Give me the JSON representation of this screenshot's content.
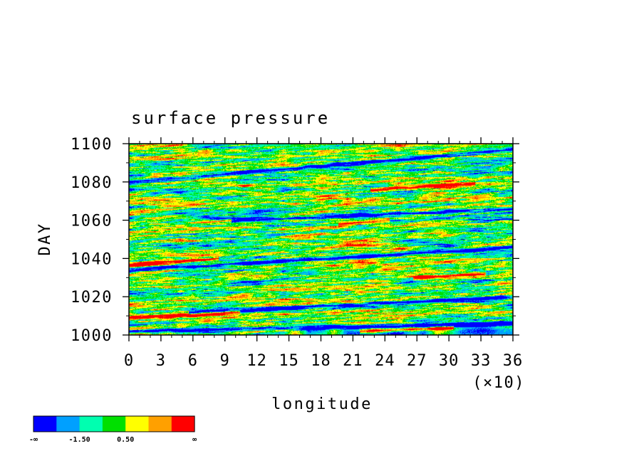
{
  "chart_data": {
    "type": "heatmap",
    "title": "surface pressure",
    "xlabel": "longitude",
    "ylabel": "DAY",
    "x_scale_note": "(×10)",
    "xlim": [
      0,
      36
    ],
    "ylim": [
      1000,
      1100
    ],
    "x_ticks": [
      0,
      3,
      6,
      9,
      12,
      15,
      18,
      21,
      24,
      27,
      30,
      33,
      36
    ],
    "y_ticks": [
      1000,
      1020,
      1040,
      1060,
      1080,
      1100
    ],
    "x_tick_labels": [
      "0",
      "3",
      "6",
      "9",
      "12",
      "15",
      "18",
      "21",
      "24",
      "27",
      "30",
      "33",
      "36"
    ],
    "y_tick_labels": [
      "1000",
      "1020",
      "1040",
      "1060",
      "1080",
      "1100"
    ],
    "color_levels": [
      "#0000ff",
      "#00a0ff",
      "#00ffb0",
      "#00e000",
      "#ffff00",
      "#ffa000",
      "#ff0000"
    ],
    "colorbar_labels": [
      "-∞",
      "-1.50",
      "0.50",
      "∞"
    ],
    "features": [
      {
        "kind": "low",
        "x0": 0,
        "day0": 1002,
        "x1": 36,
        "day1": 1006
      },
      {
        "kind": "low",
        "x0": 6,
        "day0": 1012,
        "x1": 36,
        "day1": 1020
      },
      {
        "kind": "low",
        "x0": 0,
        "day0": 1034,
        "x1": 36,
        "day1": 1046
      },
      {
        "kind": "low",
        "x0": 10,
        "day0": 1060,
        "x1": 36,
        "day1": 1066
      },
      {
        "kind": "low",
        "x0": 0,
        "day0": 1080,
        "x1": 36,
        "day1": 1097
      },
      {
        "kind": "high",
        "x0": 0,
        "day0": 1037,
        "x1": 8,
        "day1": 1040
      },
      {
        "kind": "high",
        "x0": 20,
        "day0": 1058,
        "x1": 24,
        "day1": 1060
      },
      {
        "kind": "high",
        "x0": 23,
        "day0": 1076,
        "x1": 32,
        "day1": 1079
      },
      {
        "kind": "high",
        "x0": 27,
        "day0": 1030,
        "x1": 33,
        "day1": 1032
      },
      {
        "kind": "high",
        "x0": 0,
        "day0": 1009,
        "x1": 10,
        "day1": 1012
      },
      {
        "kind": "high",
        "x0": 22,
        "day0": 1002,
        "x1": 30,
        "day1": 1004
      }
    ]
  }
}
